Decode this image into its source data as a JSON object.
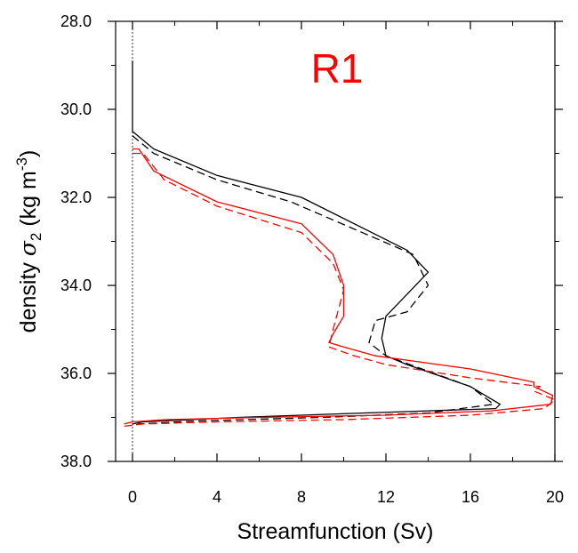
{
  "chart_data": {
    "type": "line",
    "title": "R1",
    "title_color": "#ff0000",
    "xlabel": "Streamfunction (Sv)",
    "ylabel_prefix": "density ",
    "ylabel_symbol": "σ",
    "ylabel_subscript": "2",
    "ylabel_units": " (kg m",
    "ylabel_superscript": "-3",
    "ylabel_close": ")",
    "xlim": [
      -0.8,
      20
    ],
    "ylim": [
      28.0,
      38.0
    ],
    "y_inverted": true,
    "x_ticks": [
      0,
      4,
      8,
      12,
      16,
      20
    ],
    "x_tick_labels": [
      "0",
      "4",
      "8",
      "12",
      "16",
      "20"
    ],
    "x_minor_ticks": [
      2,
      6,
      10,
      14,
      18
    ],
    "y_ticks": [
      28,
      30,
      32,
      34,
      36,
      38
    ],
    "y_tick_labels": [
      "28.0",
      "30.0",
      "32.0",
      "34.0",
      "36.0",
      "38.0"
    ],
    "y_minor_ticks": [
      29,
      31,
      33,
      35,
      37
    ],
    "zero_line": {
      "x": 0,
      "color": "#000000",
      "style": "dotted"
    },
    "series": [
      {
        "color": "#000000",
        "style": "solid",
        "x": [
          0.0,
          0.0,
          0.0,
          0.0,
          1.0,
          4.0,
          8.0,
          13.0,
          14.0,
          13.0,
          12.0,
          11.8,
          12.0,
          13.0,
          16.0,
          17.4,
          17.2,
          14.0,
          11.0,
          5.0,
          0.5,
          0.0
        ],
        "y": [
          28.9,
          30.0,
          30.5,
          30.5,
          30.9,
          31.5,
          32.0,
          33.2,
          33.7,
          34.2,
          34.7,
          35.2,
          35.6,
          35.8,
          36.3,
          36.7,
          36.8,
          36.85,
          36.9,
          37.0,
          37.1,
          37.15
        ]
      },
      {
        "color": "#000000",
        "style": "dashed",
        "x": [
          0.0,
          0.0,
          1.0,
          4.0,
          7.5,
          13.3,
          14.0,
          13.0,
          11.5,
          11.2,
          12.0,
          16.0,
          17.1,
          14.0,
          9.0,
          3.0,
          0.3,
          0.0
        ],
        "y": [
          30.6,
          30.6,
          31.0,
          31.6,
          32.1,
          33.3,
          34.0,
          34.6,
          34.8,
          35.3,
          35.6,
          36.3,
          36.7,
          36.9,
          37.0,
          37.08,
          37.15,
          37.2
        ]
      },
      {
        "color": "#ff0000",
        "style": "solid",
        "x": [
          0.0,
          0.3,
          1.0,
          4.0,
          8.0,
          9.5,
          10.0,
          10.0,
          9.5,
          9.3,
          10.0,
          11.5,
          16.0,
          19.0,
          19.0,
          19.9,
          19.8,
          17.0,
          12.0,
          6.0,
          1.5,
          0.0,
          -0.4
        ],
        "y": [
          30.9,
          30.9,
          31.4,
          32.1,
          32.6,
          33.3,
          34.0,
          34.7,
          35.1,
          35.3,
          35.4,
          35.6,
          35.9,
          36.2,
          36.3,
          36.5,
          36.7,
          36.85,
          36.95,
          37.0,
          37.05,
          37.1,
          37.15
        ]
      },
      {
        "color": "#ff0000",
        "style": "dashed",
        "x": [
          0.0,
          0.5,
          1.5,
          4.0,
          8.0,
          9.5,
          10.0,
          9.5,
          9.3,
          10.5,
          12.0,
          16.0,
          19.3,
          19.0,
          20.0,
          19.5,
          16.0,
          10.0,
          4.0,
          0.5,
          -0.4
        ],
        "y": [
          31.0,
          31.0,
          31.6,
          32.2,
          32.8,
          33.5,
          34.1,
          35.0,
          35.4,
          35.6,
          35.8,
          36.1,
          36.3,
          36.4,
          36.6,
          36.8,
          36.95,
          37.05,
          37.1,
          37.15,
          37.2
        ]
      }
    ]
  }
}
